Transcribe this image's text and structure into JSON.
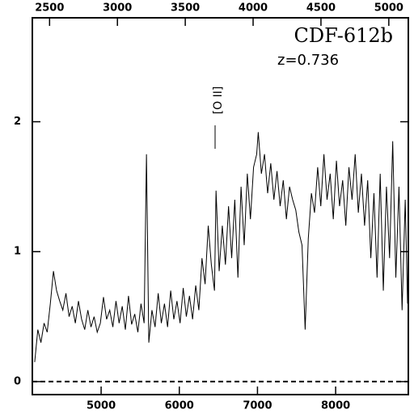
{
  "chart_data": {
    "type": "line",
    "title": "CDF-612b",
    "subtitle": "z=0.736",
    "annotation": "[O II]",
    "x": [
      4150,
      4190,
      4230,
      4270,
      4310,
      4350,
      4390,
      4430,
      4470,
      4510,
      4550,
      4590,
      4630,
      4670,
      4710,
      4750,
      4790,
      4830,
      4870,
      4910,
      4950,
      4990,
      5030,
      5070,
      5110,
      5150,
      5190,
      5230,
      5270,
      5310,
      5350,
      5390,
      5430,
      5470,
      5510,
      5550,
      5580,
      5610,
      5650,
      5690,
      5730,
      5770,
      5810,
      5850,
      5890,
      5930,
      5970,
      6010,
      6050,
      6090,
      6130,
      6170,
      6210,
      6250,
      6290,
      6330,
      6370,
      6410,
      6450,
      6470,
      6510,
      6550,
      6590,
      6630,
      6670,
      6710,
      6750,
      6790,
      6830,
      6870,
      6910,
      6950,
      6990,
      7010,
      7050,
      7090,
      7130,
      7170,
      7210,
      7250,
      7290,
      7330,
      7370,
      7410,
      7450,
      7490,
      7530,
      7570,
      7610,
      7650,
      7690,
      7730,
      7770,
      7810,
      7850,
      7890,
      7930,
      7970,
      8010,
      8050,
      8090,
      8130,
      8170,
      8210,
      8250,
      8290,
      8330,
      8370,
      8410,
      8450,
      8490,
      8530,
      8570,
      8610,
      8650,
      8690,
      8730,
      8770,
      8810,
      8850,
      8890,
      8920
    ],
    "values": [
      0.15,
      0.4,
      0.3,
      0.45,
      0.38,
      0.6,
      0.85,
      0.7,
      0.62,
      0.55,
      0.68,
      0.5,
      0.58,
      0.45,
      0.62,
      0.48,
      0.4,
      0.55,
      0.42,
      0.5,
      0.38,
      0.45,
      0.65,
      0.48,
      0.55,
      0.42,
      0.62,
      0.45,
      0.58,
      0.4,
      0.66,
      0.44,
      0.52,
      0.38,
      0.6,
      0.45,
      1.75,
      0.3,
      0.55,
      0.42,
      0.68,
      0.45,
      0.6,
      0.42,
      0.7,
      0.48,
      0.62,
      0.45,
      0.72,
      0.5,
      0.66,
      0.48,
      0.74,
      0.55,
      0.95,
      0.75,
      1.2,
      0.9,
      0.7,
      1.47,
      0.85,
      1.2,
      0.9,
      1.35,
      0.95,
      1.4,
      0.8,
      1.5,
      1.05,
      1.6,
      1.25,
      1.65,
      1.75,
      1.92,
      1.6,
      1.75,
      1.45,
      1.68,
      1.4,
      1.62,
      1.35,
      1.55,
      1.25,
      1.5,
      1.4,
      1.32,
      1.15,
      1.05,
      0.4,
      1.1,
      1.45,
      1.3,
      1.65,
      1.35,
      1.75,
      1.4,
      1.6,
      1.25,
      1.7,
      1.35,
      1.55,
      1.2,
      1.65,
      1.4,
      1.75,
      1.3,
      1.6,
      1.2,
      1.55,
      0.95,
      1.45,
      0.8,
      1.6,
      0.7,
      1.5,
      0.95,
      1.85,
      0.8,
      1.5,
      0.55,
      1.4,
      0.6
    ],
    "color": "#000000",
    "xlim": [
      4120,
      8930
    ],
    "xticks": [
      5000,
      6000,
      7000,
      8000
    ],
    "x2lim": [
      2373,
      5144
    ],
    "x2ticks": [
      2500,
      3000,
      3500,
      4000,
      4500,
      5000
    ],
    "ylim": [
      -0.1,
      2.8
    ],
    "yticks": [
      0,
      1,
      2
    ],
    "zero_line": true
  }
}
